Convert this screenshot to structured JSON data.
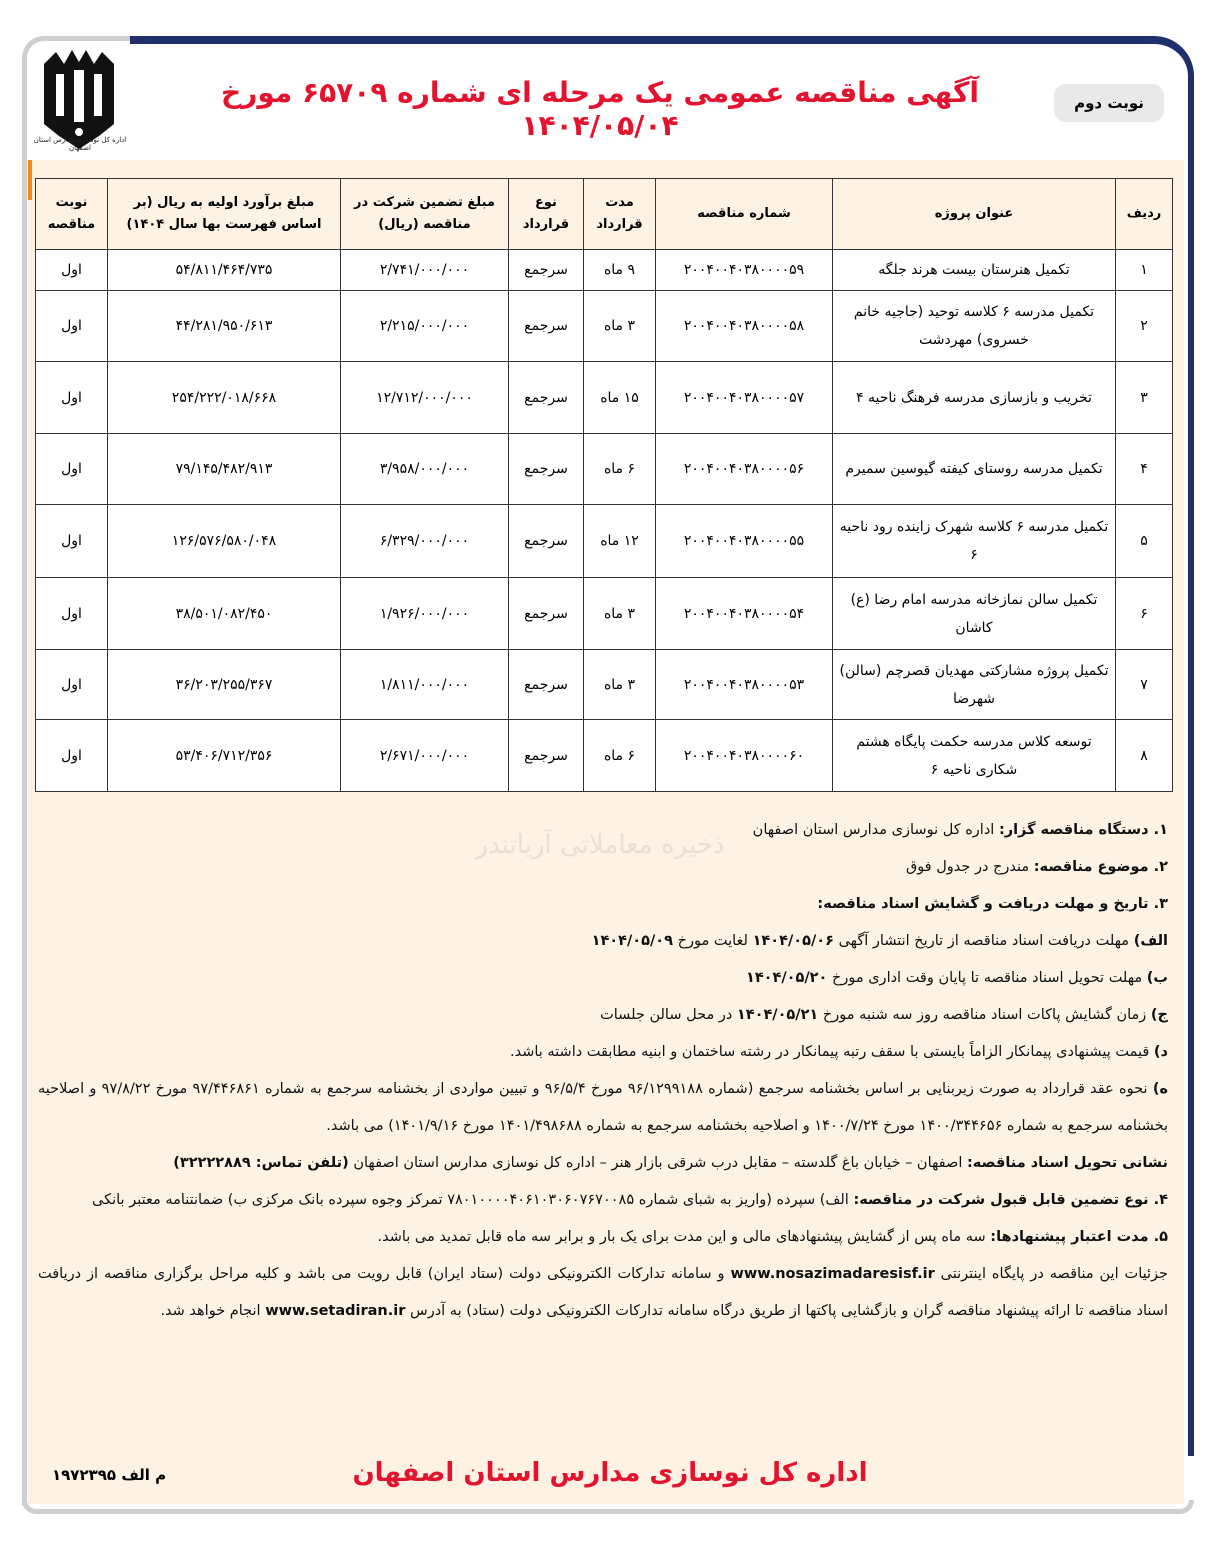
{
  "header": {
    "title": "آگهی مناقصه عمومی یک مرحله ای شماره ۶۵۷۰۹ مورخ ۱۴۰۴/۰۵/۰۴",
    "round": "نوبت دوم",
    "logo_caption": "اداره کل نوسازی مدارس استان اصفهان",
    "brand_color": "#e3122d",
    "frame_color": "#1f2f6b"
  },
  "table": {
    "headers": [
      "ردیف",
      "عنوان پروژه",
      "شماره مناقصه",
      "مدت قرارداد",
      "نوع قرارداد",
      "مبلغ تضمین شرکت در مناقصه (ریال)",
      "مبلغ برآورد اولیه به ریال (بر اساس فهرست بها سال ۱۴۰۴)",
      "نوبت مناقصه"
    ],
    "rows": [
      {
        "row": "۱",
        "title": "تکمیل هنرستان بیست هرند جلگه",
        "number": "۲۰۰۴۰۰۴۰۳۸۰۰۰۰۵۹",
        "duration": "۹ ماه",
        "type": "سرجمع",
        "guarantee": "۲/۷۴۱/۰۰۰/۰۰۰",
        "estimate": "۵۴/۸۱۱/۴۶۴/۷۳۵",
        "round": "اول"
      },
      {
        "row": "۲",
        "title": "تکمیل مدرسه ۶ کلاسه توحید (حاجیه خانم خسروی) مهردشت",
        "number": "۲۰۰۴۰۰۴۰۳۸۰۰۰۰۵۸",
        "duration": "۳ ماه",
        "type": "سرجمع",
        "guarantee": "۲/۲۱۵/۰۰۰/۰۰۰",
        "estimate": "۴۴/۲۸۱/۹۵۰/۶۱۳",
        "round": "اول"
      },
      {
        "row": "۳",
        "title": "تخریب و بازسازی مدرسه فرهنگ ناحیه ۴",
        "number": "۲۰۰۴۰۰۴۰۳۸۰۰۰۰۵۷",
        "duration": "۱۵ ماه",
        "type": "سرجمع",
        "guarantee": "۱۲/۷۱۲/۰۰۰/۰۰۰",
        "estimate": "۲۵۴/۲۲۲/۰۱۸/۶۶۸",
        "round": "اول"
      },
      {
        "row": "۴",
        "title": "تکمیل مدرسه روستای کیفته گیوسین سمیرم",
        "number": "۲۰۰۴۰۰۴۰۳۸۰۰۰۰۵۶",
        "duration": "۶ ماه",
        "type": "سرجمع",
        "guarantee": "۳/۹۵۸/۰۰۰/۰۰۰",
        "estimate": "۷۹/۱۴۵/۴۸۲/۹۱۳",
        "round": "اول"
      },
      {
        "row": "۵",
        "title": "تکمیل مدرسه ۶ کلاسه شهرک زاینده رود ناحیه ۶",
        "number": "۲۰۰۴۰۰۴۰۳۸۰۰۰۰۵۵",
        "duration": "۱۲ ماه",
        "type": "سرجمع",
        "guarantee": "۶/۳۲۹/۰۰۰/۰۰۰",
        "estimate": "۱۲۶/۵۷۶/۵۸۰/۰۴۸",
        "round": "اول"
      },
      {
        "row": "۶",
        "title": "تکمیل سالن نمازخانه مدرسه امام رضا (ع) کاشان",
        "number": "۲۰۰۴۰۰۴۰۳۸۰۰۰۰۵۴",
        "duration": "۳ ماه",
        "type": "سرجمع",
        "guarantee": "۱/۹۲۶/۰۰۰/۰۰۰",
        "estimate": "۳۸/۵۰۱/۰۸۲/۴۵۰",
        "round": "اول"
      },
      {
        "row": "۷",
        "title": "تکمیل پروژه مشارکتی مهدیان قصرچم (سالن) شهرضا",
        "number": "۲۰۰۴۰۰۴۰۳۸۰۰۰۰۵۳",
        "duration": "۳ ماه",
        "type": "سرجمع",
        "guarantee": "۱/۸۱۱/۰۰۰/۰۰۰",
        "estimate": "۳۶/۲۰۳/۲۵۵/۳۶۷",
        "round": "اول"
      },
      {
        "row": "۸",
        "title": "توسعه کلاس مدرسه حکمت پایگاه هشتم شکاری ناحیه ۶",
        "number": "۲۰۰۴۰۰۴۰۳۸۰۰۰۰۶۰",
        "duration": "۶ ماه",
        "type": "سرجمع",
        "guarantee": "۲/۶۷۱/۰۰۰/۰۰۰",
        "estimate": "۵۳/۴۰۶/۷۱۲/۳۵۶",
        "round": "اول"
      }
    ]
  },
  "body": {
    "p1_label": "۱. دستگاه مناقصه گزار:",
    "p1_text": " اداره کل نوسازی مدارس استان اصفهان",
    "p2_label": "۲. موضوع مناقصه:",
    "p2_text": " مندرج در جدول فوق",
    "p3_label": "۳. تاریخ و مهلت دریافت و گشایش اسناد مناقصه:",
    "a_label": "الف)",
    "a_text": " مهلت دریافت اسناد مناقصه از تاریخ انتشار آگهی ",
    "a_date1": "۱۴۰۴/۰۵/۰۶",
    "a_mid": " لغایت مورخ ",
    "a_date2": "۱۴۰۴/۰۵/۰۹",
    "b_label": "ب)",
    "b_text": " مهلت تحویل اسناد مناقصه تا پایان وقت اداری مورخ ",
    "b_date": "۱۴۰۴/۰۵/۲۰",
    "c_label": "ج)",
    "c_text": " زمان گشایش پاکات اسناد مناقصه روز سه شنبه مورخ ",
    "c_date": "۱۴۰۴/۰۵/۲۱",
    "c_end": " در محل سالن جلسات",
    "d_label": "د)",
    "d_text": " قیمت پیشنهادی پیمانکار الزاماً بایستی با سقف رتبه پیمانکار در رشته ساختمان و ابنیه مطابقت داشته باشد.",
    "e_label": "ه)",
    "e_text": " نحوه عقد قرارداد به صورت زیربنایی بر اساس بخشنامه سرجمع (شماره ۹۶/۱۲۹۹۱۸۸ مورخ ۹۶/۵/۴ و تبیین مواردی از بخشنامه سرجمع به شماره ۹۷/۴۴۶۸۶۱ مورخ ۹۷/۸/۲۲ و اصلاحیه بخشنامه سرجمع به شماره ۱۴۰۰/۳۴۴۶۵۶ مورخ ۱۴۰۰/۷/۲۴ و اصلاحیه بخشنامه سرجمع به شماره ۱۴۰۱/۴۹۸۶۸۸ مورخ ۱۴۰۱/۹/۱۶) می باشد.",
    "addr_label": "نشانی تحویل اسناد مناقصه:",
    "addr_text": " اصفهان – خیابان باغ گلدسته – مقابل درب شرقی بازار هنر – اداره کل نوسازی مدارس استان اصفهان ",
    "phone_label": "(تلفن تماس: ۳۲۲۲۲۸۸۹)",
    "p4_label": "۴. نوع تضمین قابل قبول شرکت در مناقصه:",
    "p4_text": " الف) سپرده (واریز به شبای شماره ۷۸۰۱۰۰۰۰۴۰۶۱۰۳۰۶۰۷۶۷۰۰۸۵ تمرکز وجوه سپرده بانک مرکزی ب) ضمانتنامه معتبر بانکی",
    "p5_label": "۵. مدت اعتبار پیشنهادها:",
    "p5_text": " سه ماه پس از گشایش پیشنهادهای مالی و این مدت برای یک بار و برابر سه ماه قابل تمدید می باشد.",
    "final_text1": "جزئیات این مناقصه در پایگاه اینترنتی ",
    "url1": "www.nosazimadaresisf.ir",
    "final_text2": " و سامانه تدارکات الکترونیکی دولت (ستاد ایران) قابل رویت می باشد و کلیه مراحل برگزاری مناقصه از دریافت اسناد مناقصه تا ارائه پیشنهاد مناقصه گران و بازگشایی پاکتها از طریق درگاه سامانه تدارکات الکترونیکی دولت (ستاد) به آدرس ",
    "url2": "www.setadiran.ir",
    "final_text3": " انجام خواهد شد."
  },
  "footer": {
    "code": "م الف ۱۹۷۲۳۹۵",
    "org": "اداره کل نوسازی مدارس استان اصفهان"
  },
  "watermark": {
    "text": "AriaTender",
    "sub": "ذخیره معاملاتی آریاتندر"
  }
}
